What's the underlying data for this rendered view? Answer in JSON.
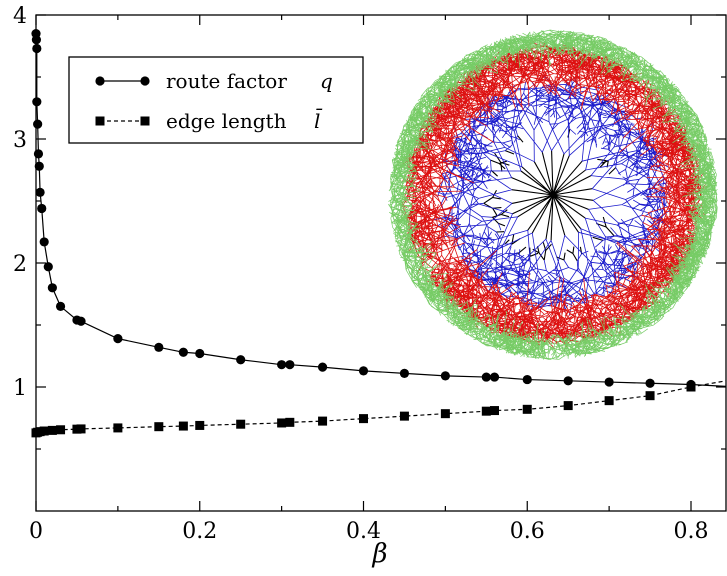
{
  "chart_data": {
    "type": "line",
    "title": "",
    "xlabel": "β",
    "ylabel": "",
    "xlim": [
      0,
      0.85
    ],
    "ylim": [
      0,
      4
    ],
    "x_ticks": [
      "0",
      "0.2",
      "0.4",
      "0.6",
      "0.8"
    ],
    "y_ticks": [
      "1",
      "2",
      "3",
      "4"
    ],
    "grid": false,
    "legend_position": "top-left",
    "series": [
      {
        "name": "route factor",
        "symbol": "q",
        "marker": "circle",
        "line_style": "solid",
        "x": [
          0.0,
          0.0005,
          0.001,
          0.001,
          0.002,
          0.003,
          0.004,
          0.005,
          0.007,
          0.01,
          0.015,
          0.02,
          0.03,
          0.05,
          0.055,
          0.1,
          0.15,
          0.18,
          0.2,
          0.25,
          0.3,
          0.31,
          0.35,
          0.4,
          0.45,
          0.5,
          0.55,
          0.56,
          0.6,
          0.65,
          0.7,
          0.75,
          0.8
        ],
        "values": [
          3.85,
          3.8,
          3.73,
          3.3,
          3.12,
          2.88,
          2.78,
          2.57,
          2.44,
          2.17,
          1.97,
          1.8,
          1.65,
          1.54,
          1.53,
          1.39,
          1.32,
          1.28,
          1.27,
          1.22,
          1.18,
          1.18,
          1.16,
          1.13,
          1.11,
          1.09,
          1.08,
          1.08,
          1.06,
          1.05,
          1.04,
          1.03,
          1.02
        ]
      },
      {
        "name": "edge length",
        "symbol": "l̄",
        "marker": "square",
        "line_style": "dashed",
        "x": [
          0.0,
          0.002,
          0.005,
          0.01,
          0.02,
          0.03,
          0.05,
          0.055,
          0.1,
          0.15,
          0.18,
          0.2,
          0.25,
          0.3,
          0.31,
          0.35,
          0.4,
          0.45,
          0.5,
          0.55,
          0.56,
          0.6,
          0.65,
          0.7,
          0.75,
          0.8
        ],
        "values": [
          0.63,
          0.635,
          0.64,
          0.645,
          0.65,
          0.655,
          0.66,
          0.662,
          0.67,
          0.68,
          0.685,
          0.69,
          0.7,
          0.71,
          0.715,
          0.725,
          0.745,
          0.765,
          0.785,
          0.805,
          0.81,
          0.82,
          0.85,
          0.89,
          0.93,
          1.0
        ]
      }
    ]
  },
  "inset": {
    "image": "radial-branching-tree-network",
    "colors": [
      "#000000",
      "#1a1acc",
      "#dd1111",
      "#77cc66"
    ]
  }
}
